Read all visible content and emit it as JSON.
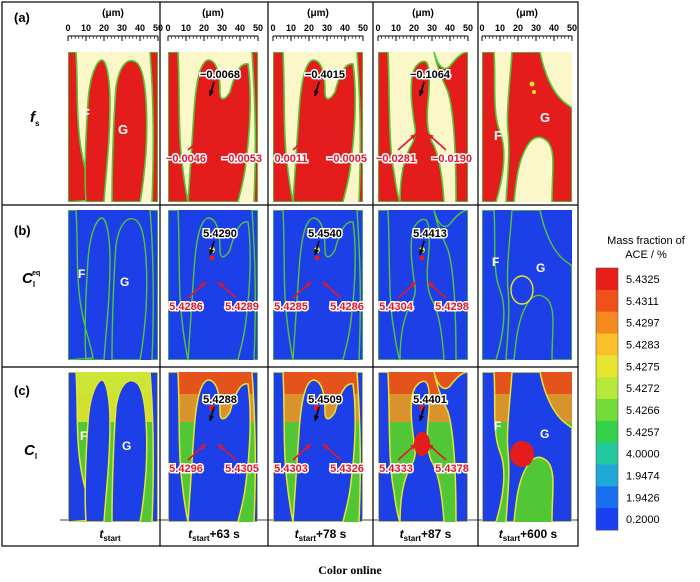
{
  "panel_labels": [
    "(a)",
    "(b)",
    "(c)"
  ],
  "axis": {
    "unit": "(μm)",
    "ticks": [
      "0",
      "10",
      "20",
      "30",
      "40",
      "50"
    ]
  },
  "row_labels": [
    {
      "main": "f",
      "sub": "s",
      "sup": ""
    },
    {
      "main": "C",
      "sub": "l",
      "sup": "eq"
    },
    {
      "main": "C",
      "sub": "l",
      "sup": ""
    }
  ],
  "time_labels": [
    {
      "t": "t",
      "sub": "start",
      "rest": ""
    },
    {
      "t": "t",
      "sub": "start",
      "rest": "+63 s"
    },
    {
      "t": "t",
      "sub": "start",
      "rest": "+78 s"
    },
    {
      "t": "t",
      "sub": "start",
      "rest": "+87 s"
    },
    {
      "t": "t",
      "sub": "start",
      "rest": "+600 s"
    }
  ],
  "phase_labels": {
    "f": "F",
    "g": "G"
  },
  "annotations": {
    "row_a": [
      {
        "col": 1,
        "top": "−0.0068",
        "left": "−0.0046",
        "right": "−0.0053"
      },
      {
        "col": 2,
        "top": "−0.4015",
        "left": "0.0011",
        "right": "−0.0005"
      },
      {
        "col": 3,
        "top": "−0.1064",
        "left": "−0.0281",
        "right": "−0.0190"
      }
    ],
    "row_b": [
      {
        "col": 1,
        "top": "5.4290",
        "left": "5.4286",
        "right": "5.4289"
      },
      {
        "col": 2,
        "top": "5.4540",
        "left": "5.4285",
        "right": "5.4286"
      },
      {
        "col": 3,
        "top": "5.4413",
        "left": "5.4304",
        "right": "5.4298"
      }
    ],
    "row_c": [
      {
        "col": 1,
        "top": "5.4288",
        "left": "5.4296",
        "right": "5.4305"
      },
      {
        "col": 2,
        "top": "5.4509",
        "left": "5.4303",
        "right": "5.4326"
      },
      {
        "col": 3,
        "top": "5.4401",
        "left": "5.4333",
        "right": "5.4378"
      }
    ]
  },
  "colorbar": {
    "title_line1": "Mass fraction of",
    "title_line2": "ACE / %",
    "values": [
      "5.4325",
      "5.4311",
      "5.4297",
      "5.4283",
      "5.4275",
      "5.4272",
      "5.4266",
      "5.4257",
      "4.0000",
      "1.9474",
      "1.9426",
      "0.2000"
    ],
    "colors": [
      "#e81e18",
      "#f0501a",
      "#f5891f",
      "#fbbf29",
      "#e7e52d",
      "#b8e93a",
      "#74dc3a",
      "#33d24a",
      "#24c89e",
      "#1fa8d8",
      "#1a6ff0",
      "#1a3ff0"
    ]
  },
  "caption": "Color online",
  "colors": {
    "red": "#e51c1c",
    "cream": "#fbf7c9",
    "blue": "#1c3fe8",
    "green": "#52c736",
    "yellow": "#e8e52e",
    "annot": "#e0182c"
  }
}
